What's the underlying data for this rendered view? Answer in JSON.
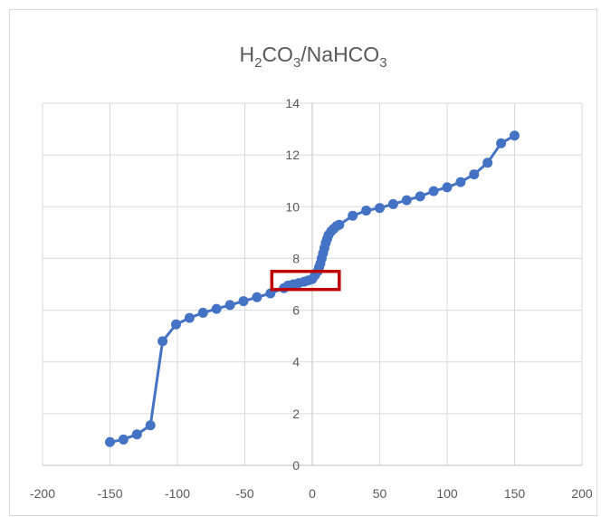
{
  "chart_data": {
    "type": "scatter",
    "title": {
      "main": "H",
      "sub1": "2",
      "mid1": "CO",
      "sub2": "3",
      "mid2": "/NaHCO",
      "sub3": "3"
    },
    "xlim": [
      -200,
      200
    ],
    "ylim": [
      0,
      14
    ],
    "x_ticks": [
      -200,
      -150,
      -100,
      -50,
      0,
      50,
      100,
      150,
      200
    ],
    "y_ticks": [
      0,
      2,
      4,
      6,
      8,
      10,
      12,
      14
    ],
    "grid": "vertical-and-horizontal",
    "legend": "none",
    "series_color": "#4472C4",
    "highlight_color": "#C00000",
    "highlight_region": {
      "x": [
        -30,
        20
      ],
      "y": [
        6.8,
        7.5
      ]
    },
    "series": [
      {
        "x": [
          -150,
          -140,
          -130,
          -120,
          -111,
          -101,
          -91,
          -81,
          -71,
          -61,
          -51,
          -41,
          -31,
          -21,
          -18,
          -14,
          -10,
          -6,
          -3,
          0,
          2,
          4,
          5,
          6,
          7,
          8,
          9,
          10,
          11,
          12,
          14,
          16,
          18,
          20,
          30,
          40,
          50,
          60,
          70,
          80,
          90,
          100,
          110,
          120,
          130,
          140,
          150
        ],
        "y": [
          0.9,
          1.0,
          1.2,
          1.55,
          4.8,
          5.45,
          5.7,
          5.9,
          6.05,
          6.2,
          6.35,
          6.5,
          6.65,
          6.85,
          6.95,
          7.0,
          7.05,
          7.1,
          7.15,
          7.2,
          7.35,
          7.5,
          7.65,
          7.8,
          8.0,
          8.2,
          8.4,
          8.6,
          8.75,
          8.9,
          9.05,
          9.15,
          9.25,
          9.3,
          9.65,
          9.85,
          9.95,
          10.1,
          10.25,
          10.4,
          10.6,
          10.75,
          10.95,
          11.25,
          11.7,
          12.45,
          12.75
        ]
      }
    ]
  }
}
